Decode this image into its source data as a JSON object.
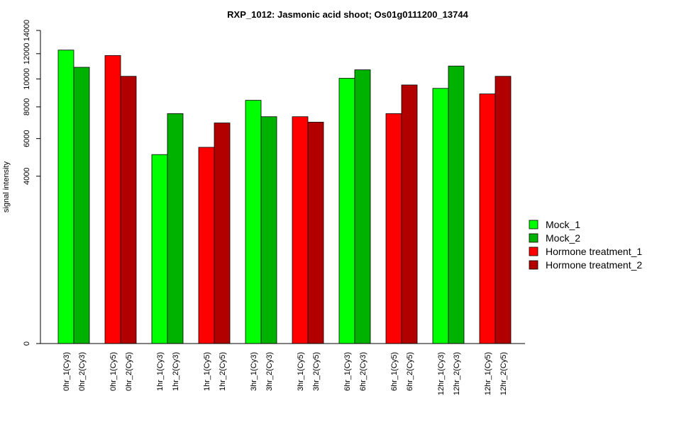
{
  "chart_data": {
    "type": "bar",
    "title": "RXP_1012: Jasmonic acid shoot; Os01g0111200_13744",
    "xlabel": "",
    "ylabel": "signal intensity",
    "y_scale": "sqrt",
    "ylim": [
      0,
      14000
    ],
    "y_ticks": [
      0,
      4000,
      6000,
      8000,
      10000,
      12000,
      14000
    ],
    "grid": false,
    "legend_position": "right",
    "series": [
      {
        "name": "Mock_1",
        "color": "#00ff00"
      },
      {
        "name": "Mock_2",
        "color": "#00b200"
      },
      {
        "name": "Hormone treatment_1",
        "color": "#ff0000"
      },
      {
        "name": "Hormone treatment_2",
        "color": "#b20000"
      }
    ],
    "bars": [
      {
        "label": "0hr_1(Cy3)",
        "value": 12300,
        "series": 0
      },
      {
        "label": "0hr_2(Cy3)",
        "value": 10900,
        "series": 1
      },
      {
        "label": "0hr_1(Cy5)",
        "value": 11850,
        "series": 2
      },
      {
        "label": "0hr_2(Cy5)",
        "value": 10200,
        "series": 3
      },
      {
        "label": "1hr_1(Cy3)",
        "value": 5100,
        "series": 0
      },
      {
        "label": "1hr_2(Cy3)",
        "value": 7550,
        "series": 1
      },
      {
        "label": "1hr_1(Cy5)",
        "value": 5500,
        "series": 2
      },
      {
        "label": "1hr_2(Cy5)",
        "value": 6950,
        "series": 3
      },
      {
        "label": "3hr_1(Cy3)",
        "value": 8450,
        "series": 0
      },
      {
        "label": "3hr_2(Cy3)",
        "value": 7350,
        "series": 1
      },
      {
        "label": "3hr_1(Cy5)",
        "value": 7350,
        "series": 2
      },
      {
        "label": "3hr_2(Cy5)",
        "value": 7000,
        "series": 3
      },
      {
        "label": "6hr_1(Cy3)",
        "value": 10050,
        "series": 0
      },
      {
        "label": "6hr_2(Cy3)",
        "value": 10700,
        "series": 1
      },
      {
        "label": "6hr_1(Cy5)",
        "value": 7550,
        "series": 2
      },
      {
        "label": "6hr_2(Cy5)",
        "value": 9550,
        "series": 3
      },
      {
        "label": "12hr_1(Cy3)",
        "value": 9300,
        "series": 0
      },
      {
        "label": "12hr_2(Cy3)",
        "value": 11000,
        "series": 1
      },
      {
        "label": "12hr_1(Cy5)",
        "value": 8900,
        "series": 2
      },
      {
        "label": "12hr_2(Cy5)",
        "value": 10200,
        "series": 3
      }
    ]
  }
}
